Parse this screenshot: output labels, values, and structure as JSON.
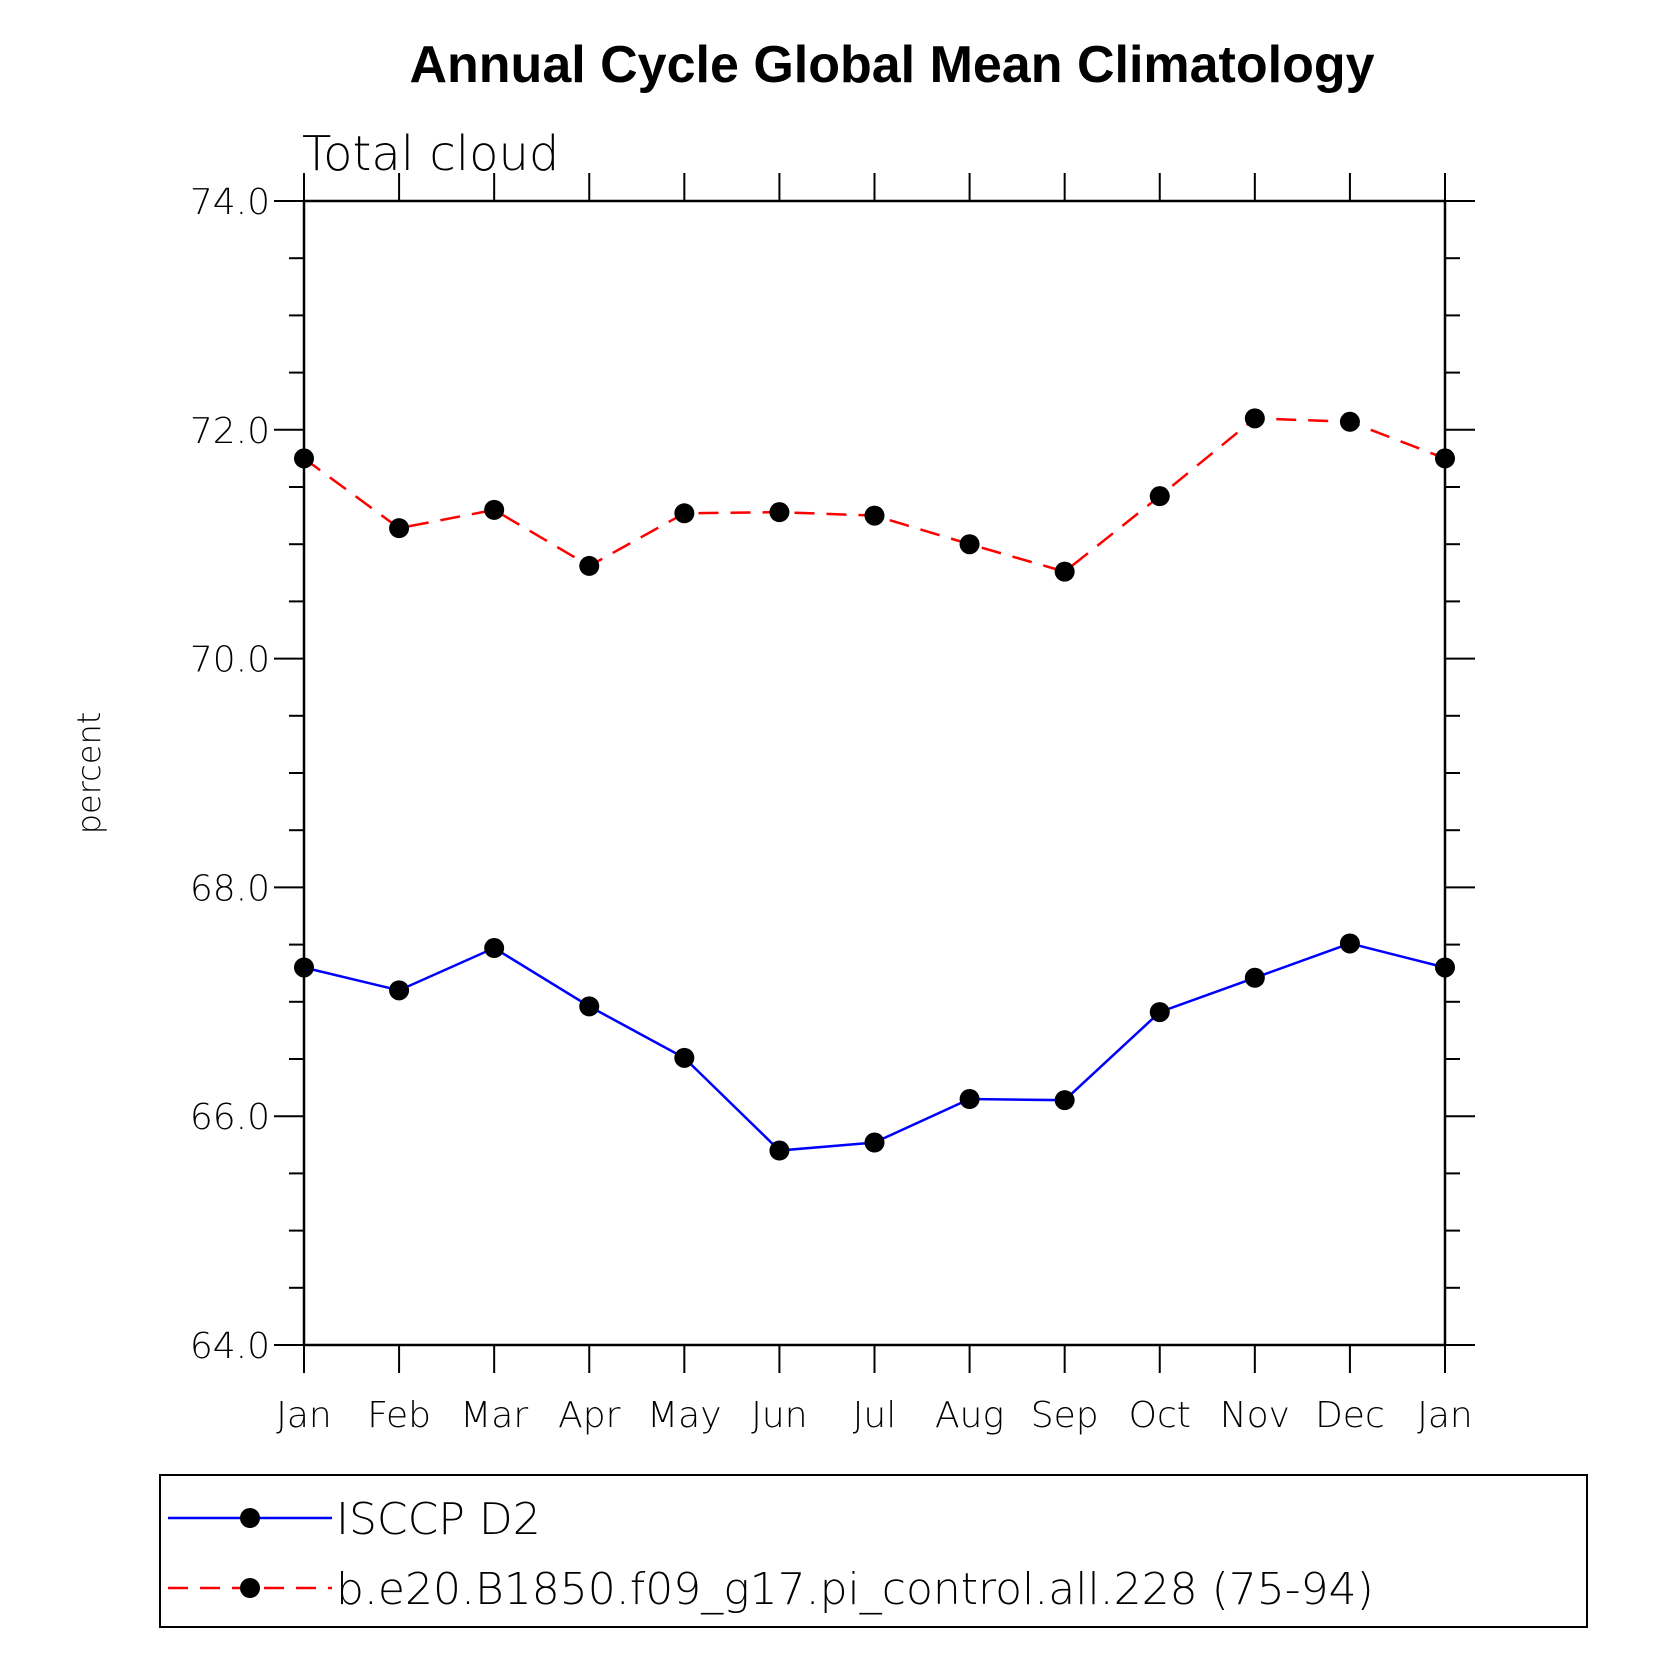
{
  "chart_data": {
    "type": "line",
    "title": "Annual Cycle Global Mean Climatology",
    "subtitle": "Total cloud",
    "xlabel": "",
    "ylabel": "percent",
    "categories": [
      "Jan",
      "Feb",
      "Mar",
      "Apr",
      "May",
      "Jun",
      "Jul",
      "Aug",
      "Sep",
      "Oct",
      "Nov",
      "Dec",
      "Jan"
    ],
    "ylim": [
      64.0,
      74.0
    ],
    "yticks": [
      "64.0",
      "66.0",
      "68.0",
      "70.0",
      "72.0",
      "74.0"
    ],
    "grid": false,
    "legend_position": "bottom",
    "series": [
      {
        "name": "ISCCP D2",
        "color": "#0000ff",
        "line_style": "solid",
        "marker": "filled-circle",
        "values": [
          67.3,
          67.1,
          67.47,
          66.96,
          66.51,
          65.7,
          65.77,
          66.15,
          66.14,
          66.91,
          67.21,
          67.51,
          67.3
        ]
      },
      {
        "name": "b.e20.B1850.f09_g17.pi_control.all.228 (75-94)",
        "color": "#ff0000",
        "line_style": "dashed",
        "marker": "filled-circle",
        "values": [
          71.75,
          71.14,
          71.3,
          70.81,
          71.27,
          71.28,
          71.25,
          71.0,
          70.76,
          71.42,
          72.1,
          72.07,
          71.75
        ]
      }
    ]
  }
}
